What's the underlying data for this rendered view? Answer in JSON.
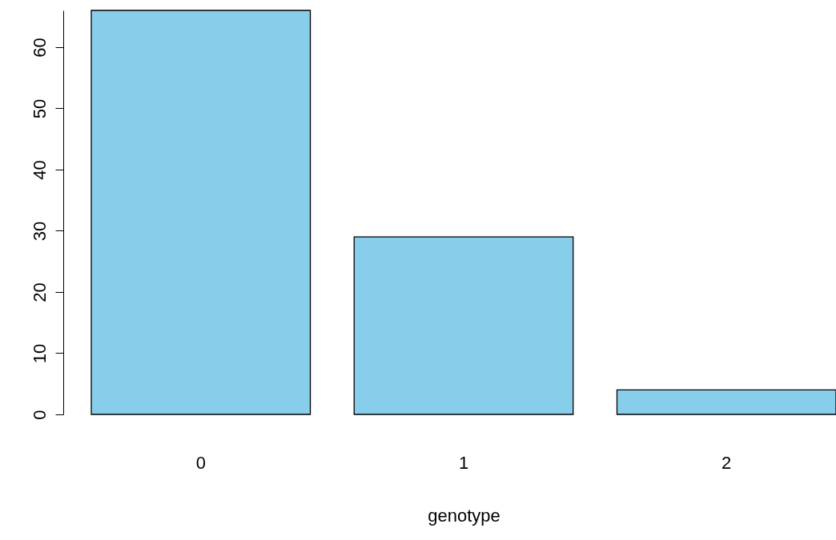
{
  "chart_data": {
    "type": "bar",
    "xlabel": "genotype",
    "categories": [
      "0",
      "1",
      "2"
    ],
    "values": [
      66,
      29,
      4
    ],
    "color": "#87ceeb",
    "ylim": [
      0,
      66
    ],
    "yticks": [
      0,
      10,
      20,
      30,
      40,
      50,
      60
    ],
    "grid": false
  }
}
